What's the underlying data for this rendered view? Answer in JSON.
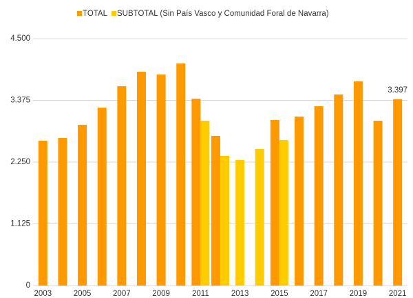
{
  "chart_data": {
    "type": "bar",
    "categories": [
      "2003",
      null,
      "2005",
      null,
      "2007",
      null,
      "2009",
      null,
      "2011",
      null,
      "2013",
      null,
      "2015",
      null,
      "2017",
      null,
      "2019",
      null,
      "2021"
    ],
    "series": [
      {
        "name": "TOTAL",
        "color": "#ff9900",
        "values": [
          2640,
          2690,
          2929,
          3243,
          3633,
          3897,
          3846,
          4047,
          3406,
          2728,
          null,
          null,
          3017,
          3080,
          3268,
          3482,
          3721,
          3004,
          3397
        ],
        "value_labels": [
          null,
          null,
          null,
          null,
          null,
          null,
          null,
          null,
          null,
          null,
          null,
          null,
          null,
          null,
          null,
          null,
          null,
          null,
          "3.397"
        ]
      },
      {
        "name": "SUBTOTAL (Sin País Vasco y Comunidad Foral de Navarra)",
        "color": "#ffcc00",
        "values": [
          null,
          null,
          null,
          null,
          null,
          null,
          null,
          null,
          3004,
          2363,
          2288,
          2489,
          2652,
          null,
          null,
          null,
          null,
          null,
          null
        ]
      }
    ],
    "ylim": [
      0,
      4500
    ],
    "yticks": [
      0,
      {
        "value": 1125,
        "label": "1.125"
      },
      {
        "value": 2250,
        "label": "2.250"
      },
      {
        "value": 3375,
        "label": "3.375"
      },
      {
        "value": 4500,
        "label": "4.500"
      }
    ],
    "grid": true,
    "legend": "top"
  }
}
